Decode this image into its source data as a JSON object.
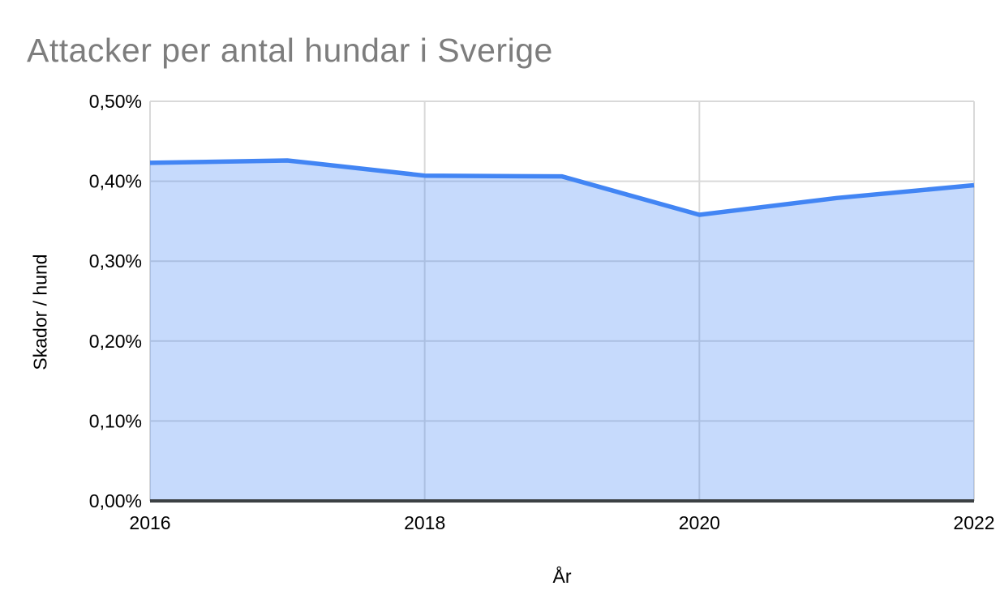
{
  "page": {
    "background": "#ffffff"
  },
  "chart_data": {
    "type": "area",
    "title": "Attacker per antal hundar i Sverige",
    "xlabel": "År",
    "ylabel": "Skador / hund",
    "x": [
      2016,
      2017,
      2018,
      2019,
      2020,
      2021,
      2022
    ],
    "values_percent": [
      0.423,
      0.426,
      0.407,
      0.406,
      0.358,
      0.379,
      0.395
    ],
    "xlim": [
      2016,
      2022
    ],
    "ylim": [
      0,
      0.5
    ],
    "yticks": [
      {
        "value": 0.0,
        "label": "0,00%"
      },
      {
        "value": 0.1,
        "label": "0,10%"
      },
      {
        "value": 0.2,
        "label": "0,20%"
      },
      {
        "value": 0.3,
        "label": "0,30%"
      },
      {
        "value": 0.4,
        "label": "0,40%"
      },
      {
        "value": 0.5,
        "label": "0,50%"
      }
    ],
    "xticks": [
      {
        "value": 2016,
        "label": "2016"
      },
      {
        "value": 2018,
        "label": "2018"
      },
      {
        "value": 2020,
        "label": "2020"
      },
      {
        "value": 2022,
        "label": "2022"
      }
    ],
    "grid": true,
    "legend": "none",
    "colors": {
      "line": "#4285f4",
      "fill": "rgba(66,133,244,0.30)",
      "gridline": "#d9d9d9",
      "axis_baseline": "#3c4043",
      "title_text": "#7d7d7d",
      "tick_text": "#000000"
    }
  }
}
